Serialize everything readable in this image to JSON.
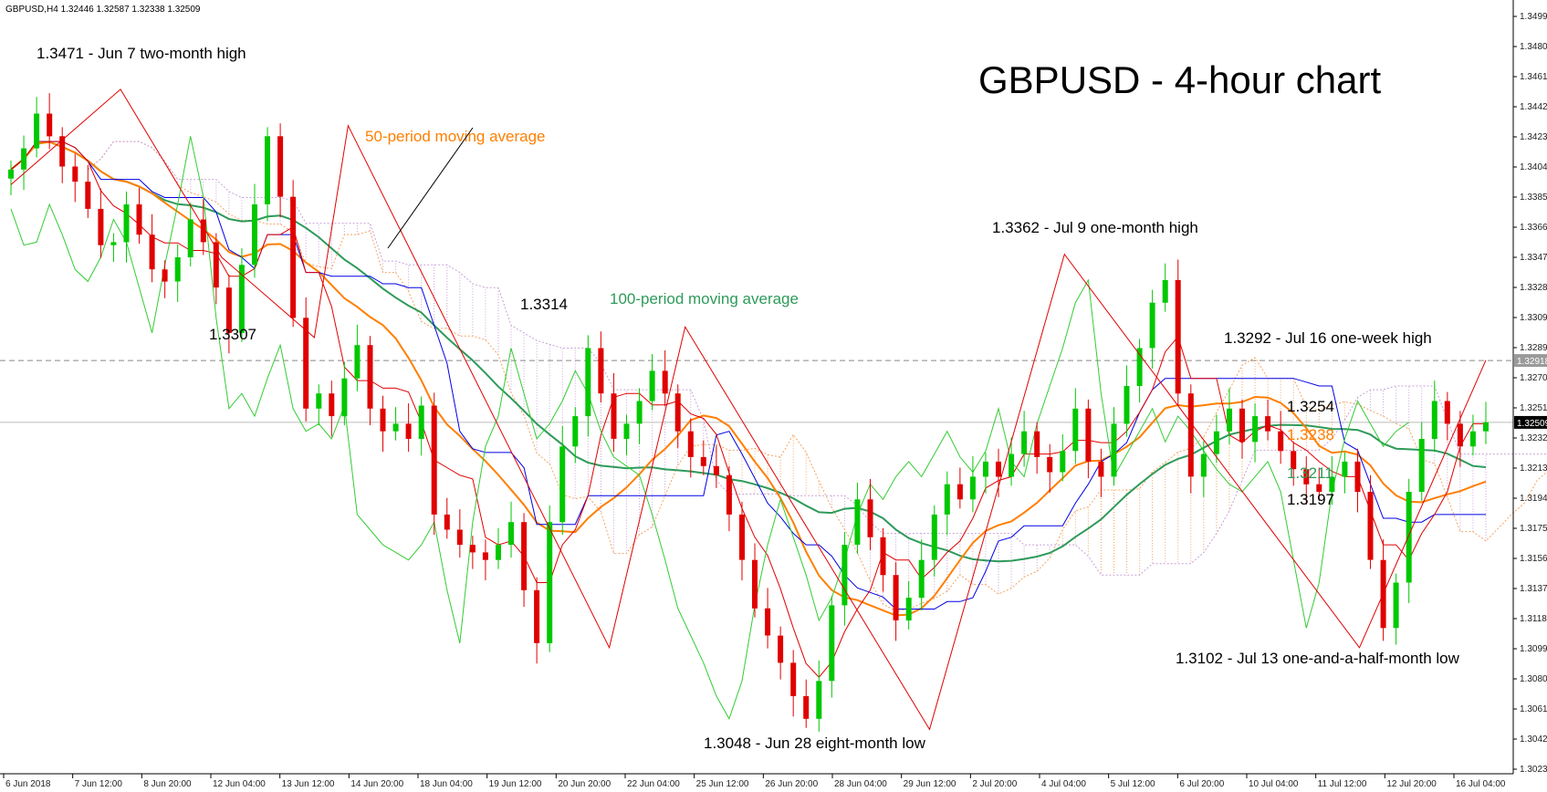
{
  "header": {
    "symbol_line": "GBPUSD,H4  1.32446 1.32587 1.32338 1.32509"
  },
  "chart_data": {
    "type": "candlestick",
    "title": "GBPUSD - 4-hour chart",
    "ylim": [
      1.30235,
      1.3518
    ],
    "grid": false,
    "colors": {
      "bull_candle": "#00c800",
      "bear_candle": "#e00000",
      "ma50": "#ff7f00",
      "ma100": "#2e9a5a",
      "tenkan": "#e00000",
      "kijun": "#0000e6",
      "chikou": "#33cc33",
      "cloud": "#f4a460",
      "cloud_alt": "#c8a0d8",
      "zigzag": "#e00000",
      "price_line": "#888888"
    },
    "y_ticks": [
      "1.34990",
      "1.34800",
      "1.34610",
      "1.34420",
      "1.34230",
      "1.34040",
      "1.33850",
      "1.33660",
      "1.33470",
      "1.33280",
      "1.33090",
      "1.32895",
      "1.32705",
      "1.32515",
      "1.32325",
      "1.32135",
      "1.31945",
      "1.31755",
      "1.31565",
      "1.31375",
      "1.31185",
      "1.30995",
      "1.30805",
      "1.30615",
      "1.30425",
      "1.30235"
    ],
    "x_ticks": [
      "6 Jun 2018",
      "7 Jun 12:00",
      "8 Jun 20:00",
      "12 Jun 04:00",
      "13 Jun 12:00",
      "14 Jun 20:00",
      "18 Jun 04:00",
      "19 Jun 12:00",
      "20 Jun 20:00",
      "22 Jun 04:00",
      "25 Jun 12:00",
      "26 Jun 20:00",
      "28 Jun 04:00",
      "29 Jun 12:00",
      "2 Jul 20:00",
      "4 Jul 04:00",
      "5 Jul 12:00",
      "6 Jul 20:00",
      "10 Jul 04:00",
      "11 Jul 12:00",
      "12 Jul 20:00",
      "16 Jul 04:00"
    ],
    "price_tags": [
      {
        "label": "1.32918",
        "value": 1.32918
      },
      {
        "label": "1.32509",
        "value": 1.32509
      }
    ],
    "annotations": [
      {
        "label": "1.3471 - Jun 7 two-month high",
        "value": 1.3471
      },
      {
        "label": "1.3307",
        "value": 1.3307
      },
      {
        "label": "1.3314",
        "value": 1.3314
      },
      {
        "label": "1.3048 - Jun 28 eight-month low",
        "value": 1.3048
      },
      {
        "label": "1.3362 - Jul 9 one-month high",
        "value": 1.3362
      },
      {
        "label": "1.3292 - Jul 16 one-week high",
        "value": 1.3292
      },
      {
        "label": "1.3102 - Jul 13 one-and-a-half-month low",
        "value": 1.3102
      },
      {
        "label": "1.3254",
        "value": 1.3254
      },
      {
        "label": "1.3238",
        "value": 1.3238
      },
      {
        "label": "1.3211",
        "value": 1.3211
      },
      {
        "label": "1.3197",
        "value": 1.3197
      }
    ],
    "indicator_labels": {
      "ma50": "50-period moving average",
      "ma100": "100-period moving average"
    },
    "zigzag": [
      1.3408,
      1.3471,
      1.336,
      1.3307,
      1.3447,
      1.3102,
      1.3314,
      1.3048,
      1.3362,
      1.3102,
      1.3292
    ],
    "close": [
      1.3418,
      1.3432,
      1.3455,
      1.344,
      1.342,
      1.341,
      1.3392,
      1.3368,
      1.337,
      1.3395,
      1.3375,
      1.3352,
      1.3344,
      1.336,
      1.3385,
      1.337,
      1.334,
      1.331,
      1.3355,
      1.3395,
      1.344,
      1.34,
      1.332,
      1.326,
      1.327,
      1.3255,
      1.328,
      1.3302,
      1.326,
      1.3245,
      1.325,
      1.324,
      1.3262,
      1.319,
      1.318,
      1.317,
      1.3165,
      1.316,
      1.317,
      1.3185,
      1.314,
      1.3105,
      1.3185,
      1.3235,
      1.3255,
      1.33,
      1.327,
      1.324,
      1.325,
      1.3265,
      1.3285,
      1.327,
      1.3245,
      1.3228,
      1.3222,
      1.3216,
      1.319,
      1.316,
      1.3128,
      1.311,
      1.3092,
      1.307,
      1.3055,
      1.308,
      1.313,
      1.317,
      1.32,
      1.3175,
      1.315,
      1.312,
      1.3135,
      1.316,
      1.319,
      1.321,
      1.32,
      1.3215,
      1.3225,
      1.3215,
      1.323,
      1.3245,
      1.3228,
      1.3218,
      1.3232,
      1.326,
      1.3225,
      1.3215,
      1.325,
      1.3275,
      1.33,
      1.333,
      1.3345,
      1.327,
      1.3215,
      1.323,
      1.3245,
      1.326,
      1.3238,
      1.3255,
      1.3245,
      1.3232,
      1.322,
      1.321,
      1.3205,
      1.3215,
      1.3225,
      1.3205,
      1.316,
      1.3115,
      1.3145,
      1.3205,
      1.324,
      1.3265,
      1.325,
      1.3235,
      1.3245,
      1.3251
    ]
  }
}
